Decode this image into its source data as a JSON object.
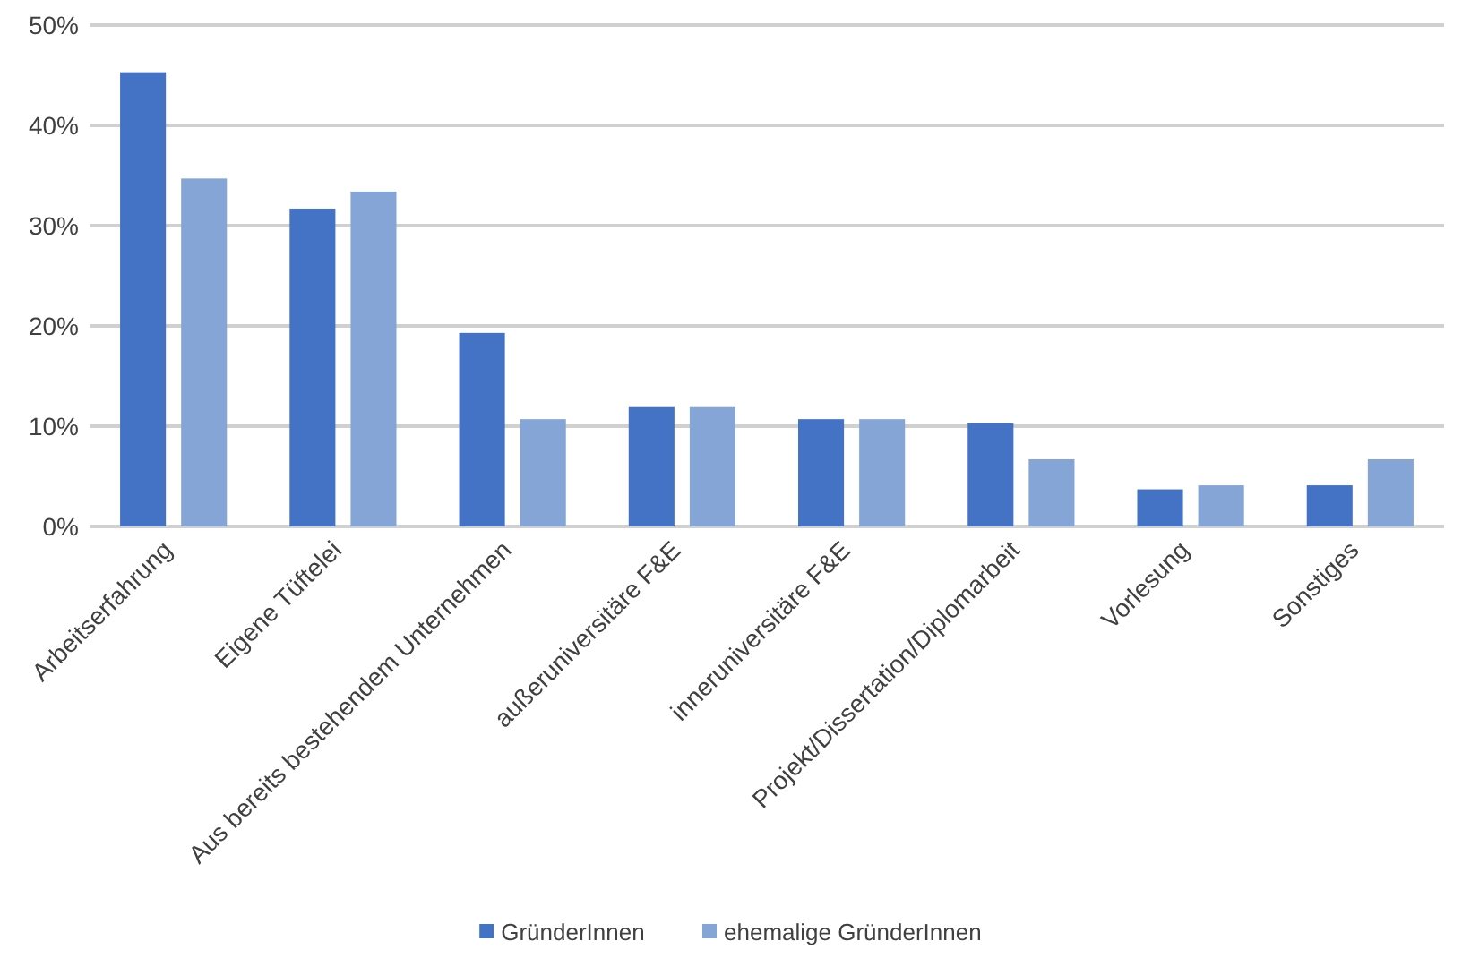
{
  "chart_data": {
    "type": "bar",
    "categories": [
      "Arbeitserfahrung",
      "Eigene Tüftelei",
      "Aus bereits bestehendem Unternehmen",
      "außeruniversitäre F&E",
      "inneruniversitäre F&E",
      "Projekt/Dissertation/Diplomarbeit",
      "Vorlesung",
      "Sonstiges"
    ],
    "series": [
      {
        "name": "GründerInnen",
        "color": "#4472c4",
        "values": [
          45.3,
          31.7,
          19.3,
          11.9,
          10.7,
          10.3,
          3.7,
          4.1
        ]
      },
      {
        "name": "ehemalige GründerInnen",
        "color": "#84a5d5",
        "values": [
          34.7,
          33.4,
          10.7,
          11.9,
          10.7,
          6.7,
          4.1,
          6.7
        ]
      }
    ],
    "ylim": [
      0,
      50
    ],
    "yticks": [
      {
        "value": 0,
        "label": "0%"
      },
      {
        "value": 10,
        "label": "10%"
      },
      {
        "value": 20,
        "label": "20%"
      },
      {
        "value": 30,
        "label": "30%"
      },
      {
        "value": 40,
        "label": "40%"
      },
      {
        "value": 50,
        "label": "50%"
      }
    ],
    "grid": "y",
    "legend": "bottom"
  }
}
